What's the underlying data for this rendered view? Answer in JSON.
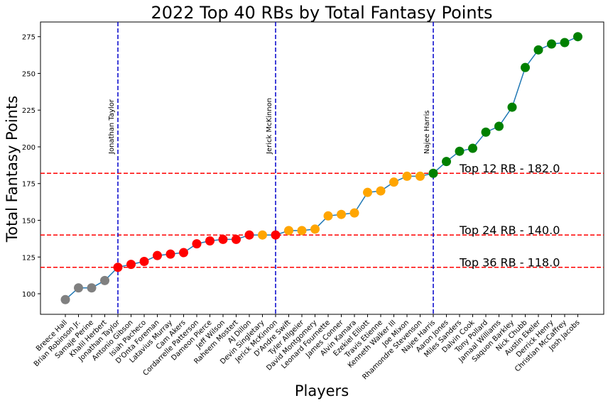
{
  "chart_data": {
    "type": "line",
    "title": "2022 Top 40 RBs by Total Fantasy Points",
    "xlabel": "Players",
    "ylabel": "Total Fantasy Points",
    "ylim": [
      86,
      285
    ],
    "yticks": [
      100,
      125,
      150,
      175,
      200,
      225,
      250,
      275
    ],
    "grid": false,
    "line_color": "#1f77b4",
    "categories": [
      "Breece Hall",
      "Brian Robinson Jr.",
      "Samaje Perine",
      "Khalil Herbert",
      "Jonathan Taylor",
      "Antonio Gibson",
      "Isiah Pacheco",
      "D'Onta Foreman",
      "Latavius Murray",
      "Cam Akers",
      "Cordarrelle Patterson",
      "Dameon Pierce",
      "Jeff Wilson",
      "Raheem Mostert",
      "AJ Dillon",
      "Devin Singletary",
      "Jerick McKinnon",
      "D'Andre Swift",
      "Tyler Allgeier",
      "David Montgomery",
      "Leonard Fournette",
      "James Conner",
      "Alvin Kamara",
      "Ezekiel Elliott",
      "Travis Etienne",
      "Kenneth Walker III",
      "Joe Mixon",
      "Rhamondre Stevenson",
      "Najee Harris",
      "Aaron Jones",
      "Miles Sanders",
      "Dalvin Cook",
      "Tony Pollard",
      "Jamaal Williams",
      "Saquon Barkley",
      "Nick Chubb",
      "Austin Ekeler",
      "Derrick Henry",
      "Christian McCaffrey",
      "Josh Jacobs"
    ],
    "values": [
      96,
      104,
      104,
      109,
      118,
      120,
      122,
      126,
      127,
      128,
      134,
      136,
      137,
      137,
      140,
      140,
      140,
      143,
      143,
      144,
      153,
      154,
      155,
      169,
      170,
      176,
      180,
      180,
      182,
      190,
      197,
      199,
      210,
      214,
      227,
      254,
      266,
      270,
      271,
      275
    ],
    "point_colors": [
      "gray",
      "gray",
      "gray",
      "gray",
      "red",
      "red",
      "red",
      "red",
      "red",
      "red",
      "red",
      "red",
      "red",
      "red",
      "red",
      "orange",
      "red",
      "orange",
      "orange",
      "orange",
      "orange",
      "orange",
      "orange",
      "orange",
      "orange",
      "orange",
      "orange",
      "orange",
      "green",
      "green",
      "green",
      "green",
      "green",
      "green",
      "green",
      "green",
      "green",
      "green",
      "green",
      "green"
    ],
    "vlines": [
      {
        "player": "Jonathan Taylor",
        "label": "Jonathan Taylor",
        "color": "#0000cc"
      },
      {
        "player": "Jerick McKinnon",
        "label": "Jerick McKinnon",
        "color": "#0000cc"
      },
      {
        "player": "Najee Harris",
        "label": "Najee Harris",
        "color": "#0000cc"
      }
    ],
    "hlines": [
      {
        "value": 182.0,
        "label": "Top 12 RB - 182.0",
        "color": "#ff0000"
      },
      {
        "value": 140.0,
        "label": "Top 24 RB - 140.0",
        "color": "#ff0000"
      },
      {
        "value": 118.0,
        "label": "Top 36 RB - 118.0",
        "color": "#ff0000"
      }
    ]
  }
}
